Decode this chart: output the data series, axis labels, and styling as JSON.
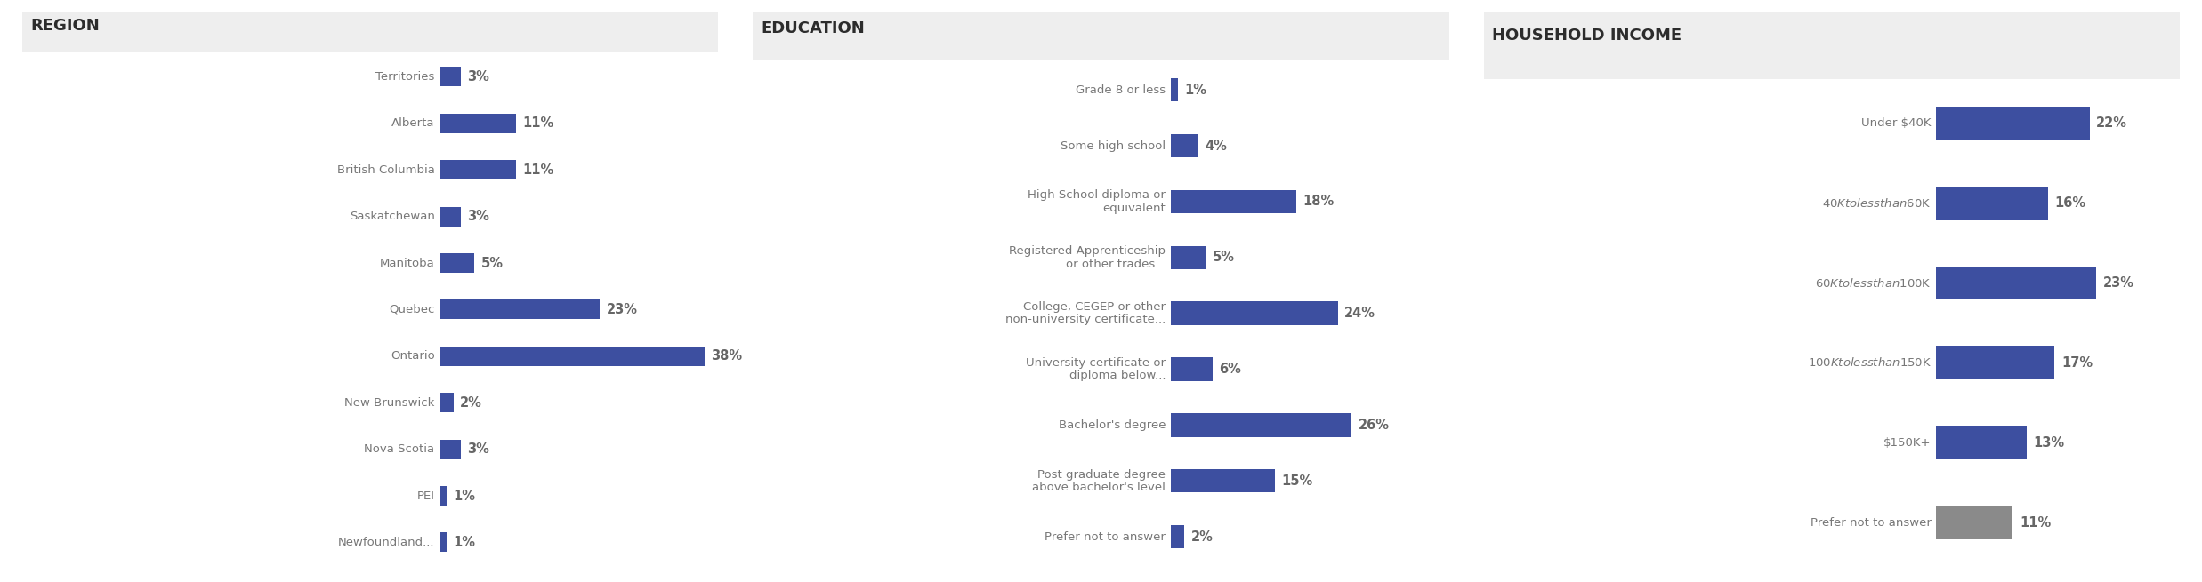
{
  "region": {
    "title": "REGION",
    "categories": [
      "Territories",
      "Alberta",
      "British Columbia",
      "Saskatchewan",
      "Manitoba",
      "Quebec",
      "Ontario",
      "New Brunswick",
      "Nova Scotia",
      "PEI",
      "Newfoundland..."
    ],
    "values": [
      3,
      11,
      11,
      3,
      5,
      23,
      38,
      2,
      3,
      1,
      1
    ],
    "bar_color": "#3d4fa0",
    "label_color": "#666666",
    "value_color": "#555555"
  },
  "education": {
    "title": "EDUCATION",
    "categories": [
      "Grade 8 or less",
      "Some high school",
      "High School diploma or\nequivalent",
      "Registered Apprenticeship\nor other trades...",
      "College, CEGEP or other\nnon-university certificate...",
      "University certificate or\ndiploma below...",
      "Bachelor's degree",
      "Post graduate degree\nabove bachelor's level",
      "Prefer not to answer"
    ],
    "values": [
      1,
      4,
      18,
      5,
      24,
      6,
      26,
      15,
      2
    ],
    "bar_color": "#3d4fa0",
    "label_color": "#666666",
    "value_color": "#555555"
  },
  "income": {
    "title": "HOUSEHOLD INCOME",
    "categories": [
      "Under $40K",
      "$40K to less than $60K",
      "$60K to less than $100K",
      "$100K to less than $150K",
      "$150K+",
      "Prefer not to answer"
    ],
    "values": [
      22,
      16,
      23,
      17,
      13,
      11
    ],
    "bar_colors": [
      "#3d4fa0",
      "#3d4fa0",
      "#3d4fa0",
      "#3d4fa0",
      "#3d4fa0",
      "#8a8a8a"
    ],
    "label_color": "#666666",
    "value_color": "#555555"
  },
  "background_color": "#ffffff",
  "header_bg_color": "#eeeeee",
  "title_fontsize": 13,
  "label_fontsize": 10,
  "value_fontsize": 11
}
